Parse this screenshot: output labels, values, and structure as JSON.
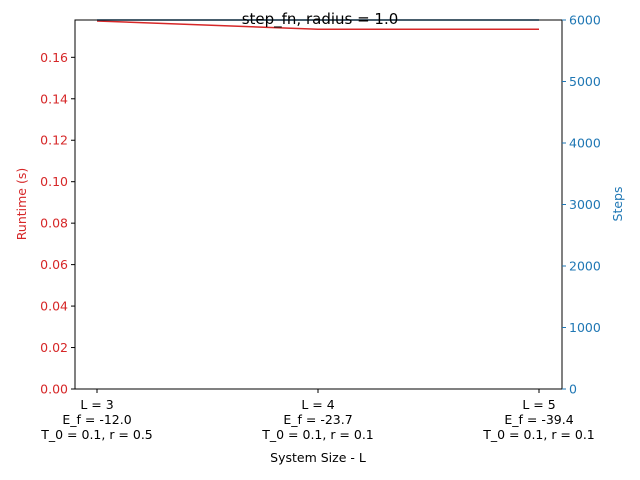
{
  "chart_data": {
    "type": "line",
    "title": "step_fn, radius = 1.0",
    "xlabel": "System Size - L",
    "ylabel_left": "Runtime (s)",
    "ylabel_right": "Steps",
    "left_axis_color": "#d62728",
    "right_axis_color": "#1f77b4",
    "categories": [
      [
        "L = 3",
        "E_f = -12.0",
        "T_0 = 0.1, r = 0.5"
      ],
      [
        "L = 4",
        "E_f = -23.7",
        "T_0 = 0.1, r = 0.1"
      ],
      [
        "L = 5",
        "E_f = -39.4",
        "T_0 = 0.1, r = 0.1"
      ]
    ],
    "left_ylim": [
      0,
      0.178
    ],
    "left_ticks": [
      "0.00",
      "0.02",
      "0.04",
      "0.06",
      "0.08",
      "0.10",
      "0.12",
      "0.14",
      "0.16"
    ],
    "right_ylim": [
      0,
      6000
    ],
    "right_ticks": [
      "0",
      "1000",
      "2000",
      "3000",
      "4000",
      "5000",
      "6000"
    ],
    "grid": false,
    "series": [
      {
        "axis": "left",
        "color": "#d62728",
        "values": [
          0.1775,
          0.1735,
          0.1735
        ]
      },
      {
        "axis": "right",
        "color": "#1f77b4",
        "values": [
          6000,
          6000,
          6000
        ]
      }
    ]
  }
}
